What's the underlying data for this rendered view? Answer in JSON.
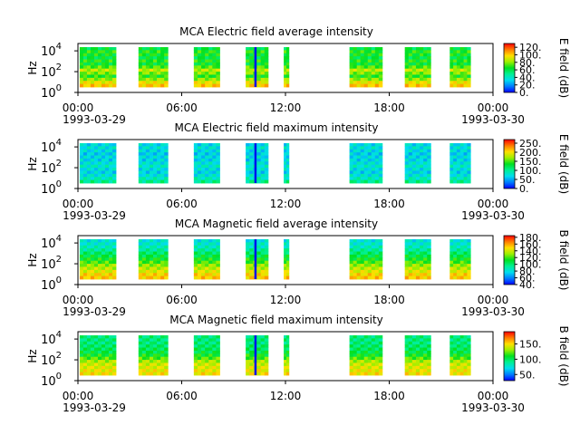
{
  "chart_data": [
    {
      "type": "heatmap",
      "title": "MCA  Electric field average intensity",
      "ylabel": "Hz",
      "y_scale": "log",
      "y_ticks": [
        {
          "base": "10",
          "exp": "0"
        },
        {
          "base": "10",
          "exp": "2"
        },
        {
          "base": "10",
          "exp": "4"
        }
      ],
      "x_ticks": [
        "00:00",
        "06:00",
        "12:00",
        "18:00",
        "00:00"
      ],
      "x_date_start": "1993-03-29",
      "x_date_end": "1993-03-30",
      "colorbar_label": "E field (dB)",
      "colorbar_ticks": [
        "0.",
        "20.",
        "40.",
        "60.",
        "80.",
        "100.",
        "120."
      ],
      "colorbar_range": [
        0,
        130
      ],
      "style": "e_avg",
      "intervals": [
        [
          0.1,
          2.2
        ],
        [
          3.5,
          5.2
        ],
        [
          6.7,
          8.2
        ],
        [
          9.7,
          11.0
        ],
        [
          11.9,
          12.2
        ],
        [
          15.7,
          17.6
        ],
        [
          18.9,
          20.4
        ],
        [
          21.5,
          22.7
        ]
      ]
    },
    {
      "type": "heatmap",
      "title": "MCA  Electric field maximum intensity",
      "ylabel": "Hz",
      "y_scale": "log",
      "y_ticks": [
        {
          "base": "10",
          "exp": "0"
        },
        {
          "base": "10",
          "exp": "2"
        },
        {
          "base": "10",
          "exp": "4"
        }
      ],
      "x_ticks": [
        "00:00",
        "06:00",
        "12:00",
        "18:00",
        "00:00"
      ],
      "x_date_start": "1993-03-29",
      "x_date_end": "1993-03-30",
      "colorbar_label": "E field (dB)",
      "colorbar_ticks": [
        "0.",
        "50.",
        "100.",
        "150.",
        "200.",
        "250."
      ],
      "colorbar_range": [
        0,
        270
      ],
      "style": "e_max",
      "intervals": [
        [
          0.1,
          2.2
        ],
        [
          3.5,
          5.2
        ],
        [
          6.7,
          8.2
        ],
        [
          9.7,
          11.0
        ],
        [
          11.9,
          12.2
        ],
        [
          15.7,
          17.6
        ],
        [
          18.9,
          20.4
        ],
        [
          21.5,
          22.7
        ]
      ]
    },
    {
      "type": "heatmap",
      "title": "MCA  Magnetic field average intensity",
      "ylabel": "Hz",
      "y_scale": "log",
      "y_ticks": [
        {
          "base": "10",
          "exp": "0"
        },
        {
          "base": "10",
          "exp": "2"
        },
        {
          "base": "10",
          "exp": "4"
        }
      ],
      "x_ticks": [
        "00:00",
        "06:00",
        "12:00",
        "18:00",
        "00:00"
      ],
      "x_date_start": "1993-03-29",
      "x_date_end": "1993-03-30",
      "colorbar_label": "B field (dB)",
      "colorbar_ticks": [
        "40.",
        "60.",
        "80.",
        "100.",
        "120.",
        "140.",
        "160.",
        "180."
      ],
      "colorbar_range": [
        40,
        185
      ],
      "style": "b_avg",
      "intervals": [
        [
          0.1,
          2.2
        ],
        [
          3.5,
          5.2
        ],
        [
          6.7,
          8.2
        ],
        [
          9.7,
          11.0
        ],
        [
          11.9,
          12.2
        ],
        [
          15.7,
          17.6
        ],
        [
          18.9,
          20.4
        ],
        [
          21.5,
          22.7
        ]
      ]
    },
    {
      "type": "heatmap",
      "title": "MCA  Magnetic field maximum intensity",
      "ylabel": "Hz",
      "y_scale": "log",
      "y_ticks": [
        {
          "base": "10",
          "exp": "0"
        },
        {
          "base": "10",
          "exp": "2"
        },
        {
          "base": "10",
          "exp": "4"
        }
      ],
      "x_ticks": [
        "00:00",
        "06:00",
        "12:00",
        "18:00",
        "00:00"
      ],
      "x_date_start": "1993-03-29",
      "x_date_end": "1993-03-30",
      "colorbar_label": "B field (dB)",
      "colorbar_ticks": [
        "50.",
        "100.",
        "150."
      ],
      "colorbar_range": [
        30,
        190
      ],
      "style": "b_max",
      "intervals": [
        [
          0.1,
          2.2
        ],
        [
          3.5,
          5.2
        ],
        [
          6.7,
          8.2
        ],
        [
          9.7,
          11.0
        ],
        [
          11.9,
          12.2
        ],
        [
          15.7,
          17.6
        ],
        [
          18.9,
          20.4
        ],
        [
          21.5,
          22.7
        ]
      ]
    }
  ]
}
